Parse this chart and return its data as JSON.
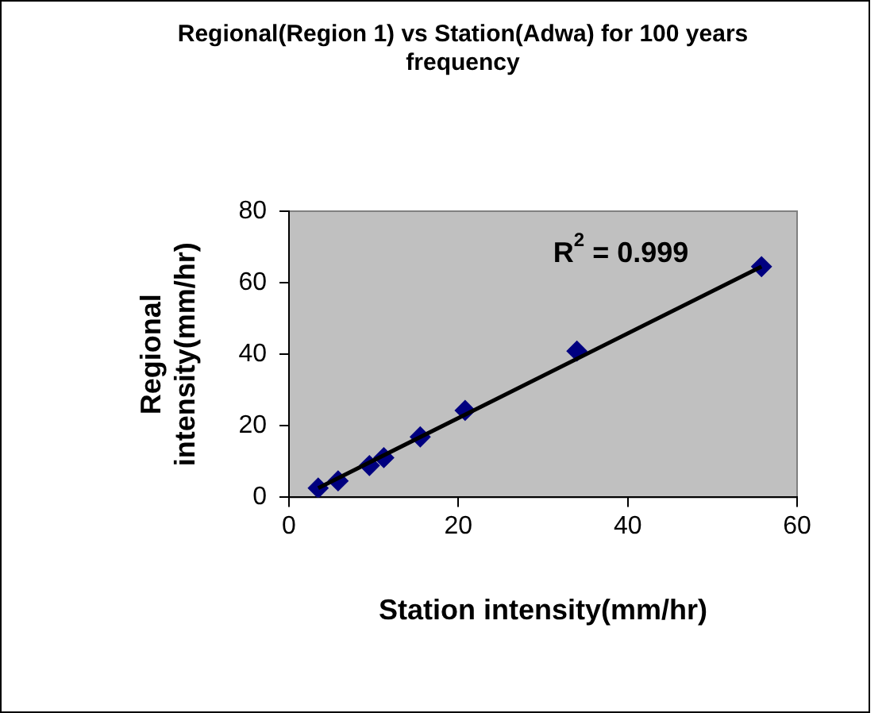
{
  "chart_data": {
    "type": "scatter",
    "title": "Regional(Region 1) vs Station(Adwa) for 100 years frequency",
    "xlabel": "Station intensity(mm/hr)",
    "ylabel": "Regional intensity(mm/hr)",
    "x": [
      3.45,
      5.8,
      9.5,
      11.2,
      15.5,
      20.8,
      34.0,
      55.8
    ],
    "series": [
      {
        "type": "scatter",
        "color": "#000080",
        "values": [
          2.6,
          4.6,
          8.9,
          11.1,
          16.9,
          24.3,
          40.9,
          64.5
        ],
        "marker": "diamond"
      },
      {
        "type": "line",
        "color": "#000000",
        "x": [
          3.45,
          55.8
        ],
        "values": [
          2.6,
          64.5
        ],
        "marker": "none",
        "line_style": "solid"
      }
    ],
    "xlim": [
      0,
      60
    ],
    "xticks": [
      0,
      20,
      40,
      60
    ],
    "ylim": [
      0,
      80
    ],
    "yticks": [
      0,
      20,
      40,
      60,
      80
    ],
    "annotations": [
      "R$^{2}$ = 0.999"
    ],
    "grid": false,
    "legend": false
  }
}
